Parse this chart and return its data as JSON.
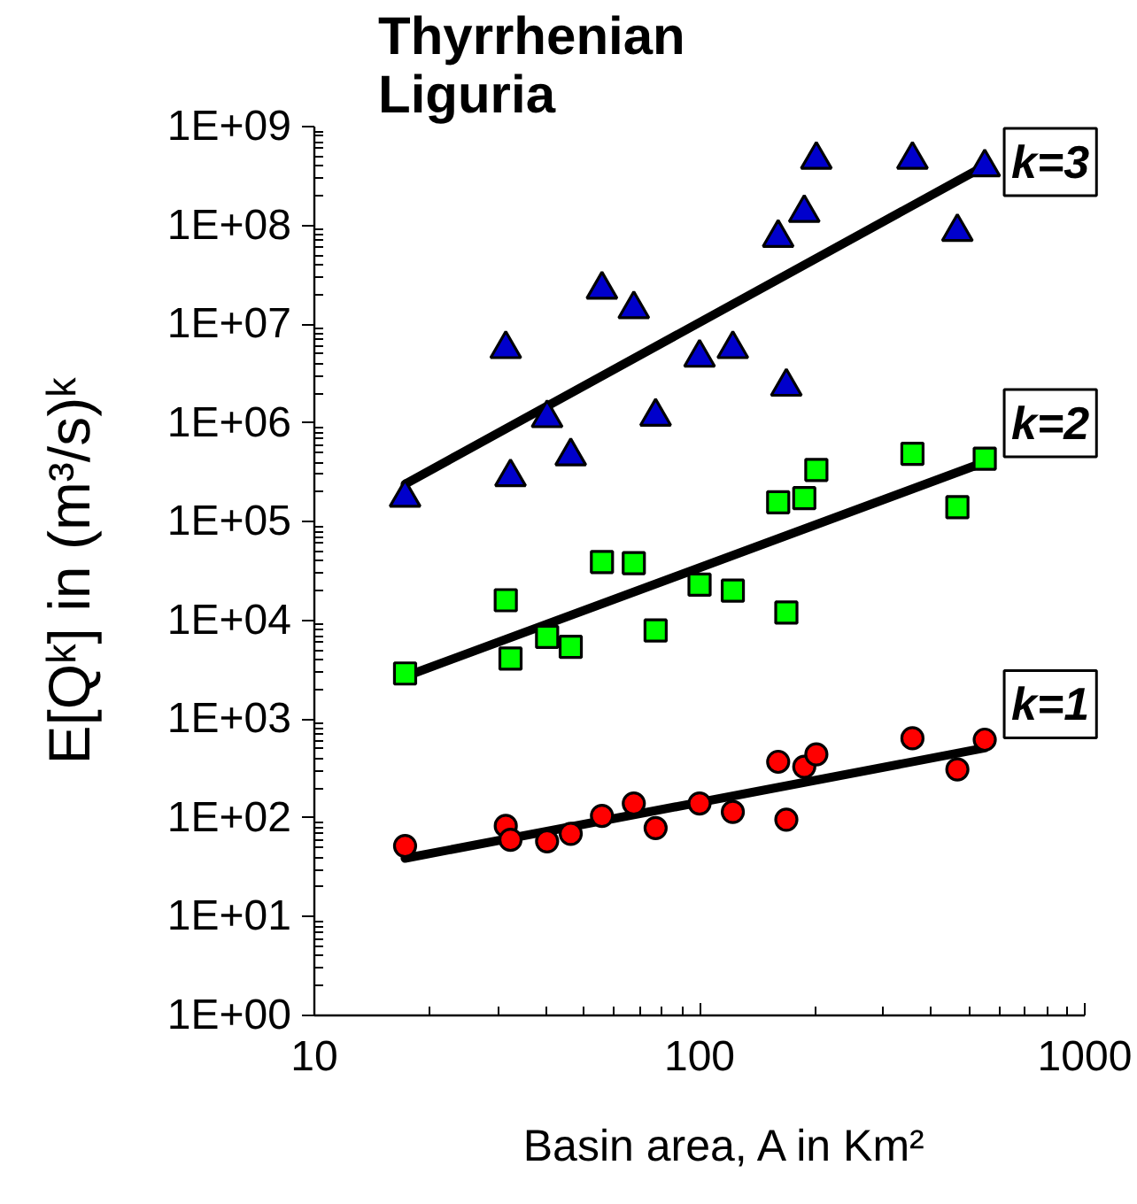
{
  "chart_data": {
    "type": "scatter",
    "title": "Thyrrhenian Liguria",
    "xlabel": "Basin area, A in Km²",
    "ylabel": "E[Qᵏ] in (m³/s)ᵏ",
    "log": "xy",
    "xlim": [
      10,
      1000
    ],
    "xticks": [
      10,
      100,
      1000
    ],
    "ylim": [
      1,
      1000000000
    ],
    "yticks": [
      {
        "value": 1,
        "label": "1E+00"
      },
      {
        "value": 10,
        "label": "1E+01"
      },
      {
        "value": 100,
        "label": "1E+02"
      },
      {
        "value": 1000,
        "label": "1E+03"
      },
      {
        "value": 10000,
        "label": "1E+04"
      },
      {
        "value": 100000,
        "label": "1E+05"
      },
      {
        "value": 1000000,
        "label": "1E+06"
      },
      {
        "value": 10000000,
        "label": "1E+07"
      },
      {
        "value": 100000000,
        "label": "1E+08"
      },
      {
        "value": 1000000000,
        "label": "1E+09"
      }
    ],
    "series": [
      {
        "name": "k=3",
        "marker": "triangle",
        "color": "#0000cc",
        "x": [
          17.2,
          31.4,
          32.3,
          40.2,
          46.3,
          55.8,
          67.5,
          76.9,
          100,
          122,
          160,
          168,
          187,
          201,
          357,
          467,
          550
        ],
        "values": [
          175000,
          5600000,
          283000,
          1120000,
          460000,
          22400000,
          14200000,
          1160000,
          4580000,
          5600000,
          75000000,
          2330000,
          134000000,
          463000000,
          463000000,
          86000000,
          388000000
        ]
      },
      {
        "type": "line",
        "color": "#000000",
        "x": [
          17.2,
          550
        ],
        "values": [
          240000,
          400000000
        ]
      },
      {
        "name": "k=2",
        "marker": "square",
        "color": "#00ff00",
        "x": [
          17.2,
          31.4,
          32.3,
          40.2,
          46.3,
          55.8,
          67.5,
          76.9,
          100,
          122,
          160,
          168,
          187,
          201,
          357,
          467,
          550
        ],
        "values": [
          2900,
          16000,
          4100,
          6800,
          5400,
          39000,
          38000,
          7900,
          23000,
          20000,
          157000,
          12000,
          173000,
          334000,
          486000,
          140000,
          434000
        ]
      },
      {
        "type": "line",
        "color": "#000000",
        "x": [
          17.2,
          550
        ],
        "values": [
          2700,
          400000
        ]
      },
      {
        "name": "k=1",
        "marker": "circle",
        "color": "#ff0000",
        "x": [
          17.2,
          31.4,
          32.3,
          40.2,
          46.3,
          55.8,
          67.5,
          76.9,
          100,
          122,
          160,
          168,
          187,
          201,
          357,
          467,
          550
        ],
        "values": [
          52,
          83,
          60,
          58,
          69,
          105,
          140,
          79,
          140,
          115,
          370,
          96,
          330,
          440,
          640,
          310,
          620
        ]
      },
      {
        "type": "line",
        "color": "#000000",
        "x": [
          17.2,
          550
        ],
        "values": [
          39,
          510
        ]
      }
    ]
  }
}
